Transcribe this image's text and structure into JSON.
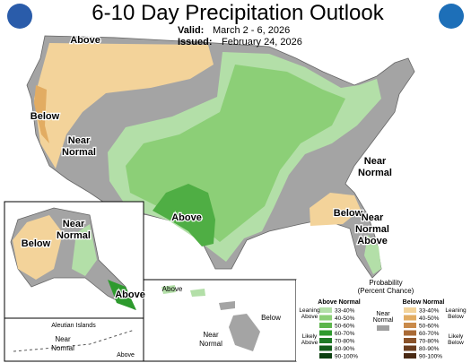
{
  "header": {
    "title": "6-10 Day Precipitation Outlook",
    "valid_label": "Valid:",
    "valid": "March 2 - 6, 2026",
    "issued_label": "Issued:",
    "issued": "February 24, 2026"
  },
  "map_labels": [
    {
      "lines": [
        "Above"
      ]
    },
    {
      "lines": [
        "Below"
      ]
    },
    {
      "lines": [
        "Near",
        "Normal"
      ]
    },
    {
      "lines": [
        "Above"
      ]
    },
    {
      "lines": [
        "Near",
        "Normal"
      ]
    },
    {
      "lines": [
        "Below"
      ]
    },
    {
      "lines": [
        "Near",
        "Normal",
        "Above"
      ]
    },
    {
      "lines": [
        "Near",
        "Normal"
      ]
    },
    {
      "lines": [
        "Below"
      ]
    },
    {
      "lines": [
        "Above"
      ]
    },
    {
      "lines": [
        "Aleutian Islands"
      ]
    },
    {
      "lines": [
        "Near",
        "Normal"
      ]
    },
    {
      "lines": [
        "Above"
      ]
    },
    {
      "lines": [
        "Above"
      ]
    },
    {
      "lines": [
        "Below"
      ]
    },
    {
      "lines": [
        "Near",
        "Normal"
      ]
    }
  ],
  "legend": {
    "title": [
      "Probability",
      "(Percent Chance)"
    ],
    "above": {
      "name": "Above Normal",
      "ranges": [
        "33-40%",
        "40-50%",
        "50-60%",
        "60-70%",
        "70-80%",
        "80-90%",
        "90-100%"
      ],
      "colors": [
        "#b3dfa8",
        "#8ccf77",
        "#5db54c",
        "#2e9a2e",
        "#1f7a26",
        "#145c1b",
        "#0b3f10"
      ]
    },
    "below": {
      "name": "Below Normal",
      "ranges": [
        "33-40%",
        "40-50%",
        "50-60%",
        "60-70%",
        "70-80%",
        "80-90%",
        "90-100%"
      ],
      "colors": [
        "#f3d39a",
        "#e2ac62",
        "#c98a4a",
        "#a96a35",
        "#8a5229",
        "#6b3d1e",
        "#4a2a14"
      ]
    },
    "near": {
      "lines": [
        "Near",
        "Normal"
      ],
      "color": "#a0a0a0"
    },
    "leaning_above": [
      "Leaning",
      "Above"
    ],
    "likely_above": [
      "Likely",
      "Above"
    ],
    "leaning_below": [
      "Leaning",
      "Below"
    ],
    "likely_below": [
      "Likely",
      "Below"
    ]
  }
}
